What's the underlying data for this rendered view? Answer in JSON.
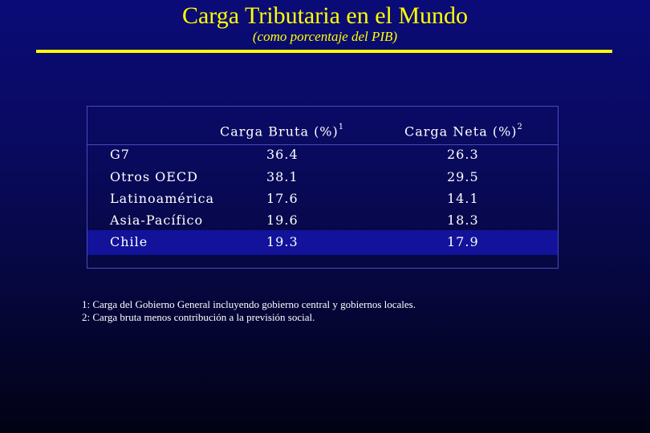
{
  "title": "Carga Tributaria en el Mundo",
  "subtitle": "(como porcentaje del PIB)",
  "table": {
    "headers": [
      {
        "label": "Carga Bruta (%)",
        "note": "1"
      },
      {
        "label": "Carga Neta (%)",
        "note": "2"
      }
    ],
    "rows": [
      {
        "region": "G7",
        "bruta": "36.4",
        "neta": "26.3"
      },
      {
        "region": "Otros OECD",
        "bruta": "38.1",
        "neta": "29.5"
      },
      {
        "region": "Latinoamérica",
        "bruta": "17.6",
        "neta": "14.1"
      },
      {
        "region": "Asia-Pacífico",
        "bruta": "19.6",
        "neta": "18.3"
      },
      {
        "region": "Chile",
        "bruta": "19.3",
        "neta": "17.9"
      }
    ]
  },
  "footnotes": [
    "1: Carga del Gobierno General incluyendo gobierno central y gobiernos locales.",
    "2: Carga bruta menos contribución a la previsión social."
  ],
  "colors": {
    "title": "#ffff00",
    "background": "#0b0b78",
    "highlight": "#12129a",
    "border": "#4a4abf"
  }
}
